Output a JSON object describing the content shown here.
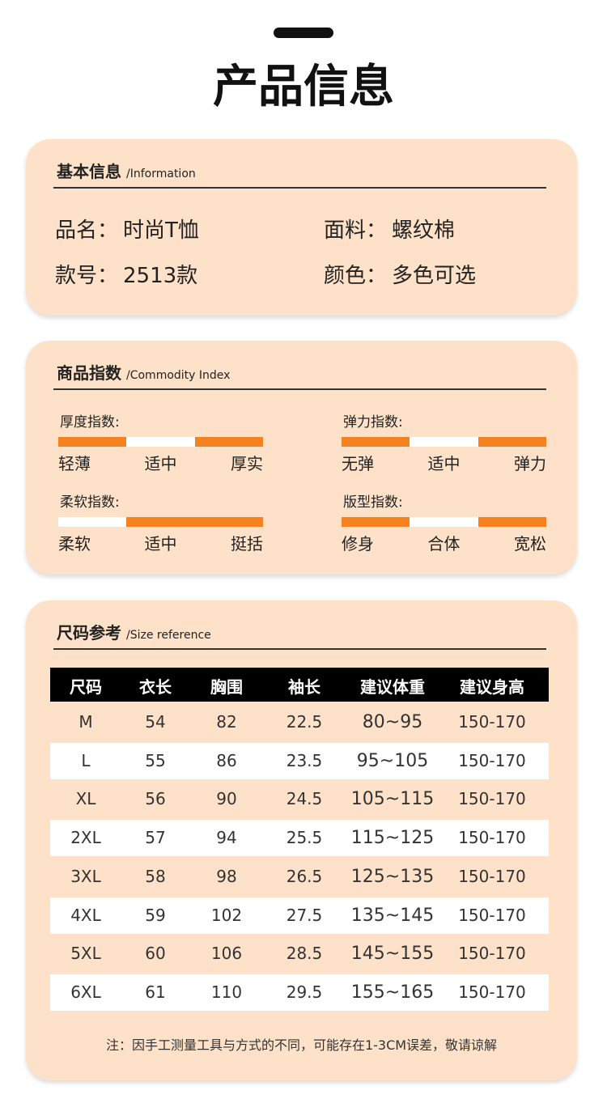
{
  "header": {
    "title": "产品信息"
  },
  "basic": {
    "title": "基本信息",
    "subtitle": "/Information",
    "fields": [
      [
        "品名：",
        "时尚T恤"
      ],
      [
        "面料：",
        "螺纹棉"
      ],
      [
        "款号：",
        "2513款"
      ],
      [
        "颜色：",
        "多色可选"
      ]
    ]
  },
  "index": {
    "title": "商品指数",
    "subtitle": "/Commodity Index",
    "highlight_color": "#f5821f",
    "base_color": "#ffffff",
    "items": [
      {
        "label": "厚度指数:",
        "options": [
          "轻薄",
          "适中",
          "厚实"
        ],
        "highlighted": [
          true,
          false,
          true
        ]
      },
      {
        "label": "弹力指数:",
        "options": [
          "无弹",
          "适中",
          "弹力"
        ],
        "highlighted": [
          true,
          false,
          true
        ]
      },
      {
        "label": "柔软指数:",
        "options": [
          "柔软",
          "适中",
          "挺括"
        ],
        "highlighted": [
          false,
          true,
          true
        ]
      },
      {
        "label": "版型指数:",
        "options": [
          "修身",
          "合体",
          "宽松"
        ],
        "highlighted": [
          true,
          false,
          true
        ]
      }
    ]
  },
  "size": {
    "title": "尺码参考",
    "subtitle": "/Size reference",
    "table": {
      "header": [
        "尺码",
        "衣长",
        "胸围",
        "袖长",
        "建议体重",
        "建议身高"
      ],
      "rows": [
        [
          "M",
          "54",
          "82",
          "22.5",
          "80~95",
          "150-170"
        ],
        [
          "L",
          "55",
          "86",
          "23.5",
          "95~105",
          "150-170"
        ],
        [
          "XL",
          "56",
          "90",
          "24.5",
          "105~115",
          "150-170"
        ],
        [
          "2XL",
          "57",
          "94",
          "25.5",
          "115~125",
          "150-170"
        ],
        [
          "3XL",
          "58",
          "98",
          "26.5",
          "125~135",
          "150-170"
        ],
        [
          "4XL",
          "59",
          "102",
          "27.5",
          "135~145",
          "150-170"
        ],
        [
          "5XL",
          "60",
          "106",
          "28.5",
          "145~155",
          "150-170"
        ],
        [
          "6XL",
          "61",
          "110",
          "29.5",
          "155~165",
          "150-170"
        ]
      ]
    },
    "note": "注：因手工测量工具与方式的不同，可能存在1-3CM误差，敬请谅解"
  }
}
